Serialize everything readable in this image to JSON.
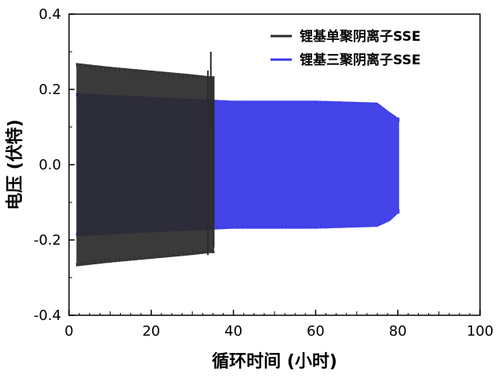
{
  "chart_data": {
    "type": "line",
    "xlabel": "循环时间 (小时)",
    "ylabel": "电压 (伏特)",
    "xlim": [
      0,
      100
    ],
    "ylim": [
      -0.4,
      0.4
    ],
    "xticks": [
      0,
      20,
      40,
      60,
      80,
      100
    ],
    "yticks": [
      -0.4,
      -0.2,
      0.0,
      0.2,
      0.4
    ],
    "xtick_labels": [
      "0",
      "20",
      "40",
      "60",
      "80",
      "100"
    ],
    "ytick_labels": [
      "-0.4",
      "-0.2",
      "0.0",
      "0.2",
      "0.4"
    ],
    "grid": false,
    "legend_position": "top-right",
    "series": [
      {
        "name": "锂基单聚阴离子SSE",
        "color": "#2b2b2b",
        "x_start": 1.8,
        "x_end": 35.5,
        "upper_envelope": [
          [
            1.8,
            0.27
          ],
          [
            10,
            0.26
          ],
          [
            20,
            0.25
          ],
          [
            30,
            0.24
          ],
          [
            34,
            0.235
          ]
        ],
        "lower_envelope": [
          [
            1.8,
            -0.27
          ],
          [
            10,
            -0.26
          ],
          [
            20,
            -0.25
          ],
          [
            30,
            -0.24
          ],
          [
            34,
            -0.235
          ]
        ],
        "spikes": [
          [
            34.5,
            0.1,
            0.3
          ],
          [
            35.2,
            -0.22,
            0.23
          ],
          [
            33.8,
            -0.24,
            0.25
          ]
        ]
      },
      {
        "name": "锂基三聚阴离子SSE",
        "color": "#3a3ae8",
        "x_start": 1.8,
        "x_end": 80.5,
        "upper_envelope": [
          [
            1.8,
            0.19
          ],
          [
            20,
            0.18
          ],
          [
            40,
            0.17
          ],
          [
            60,
            0.17
          ],
          [
            75,
            0.165
          ],
          [
            78,
            0.14
          ],
          [
            80,
            0.125
          ]
        ],
        "lower_envelope": [
          [
            1.8,
            -0.19
          ],
          [
            20,
            -0.18
          ],
          [
            40,
            -0.17
          ],
          [
            60,
            -0.17
          ],
          [
            75,
            -0.165
          ],
          [
            78,
            -0.15
          ],
          [
            80,
            -0.13
          ]
        ]
      }
    ]
  }
}
